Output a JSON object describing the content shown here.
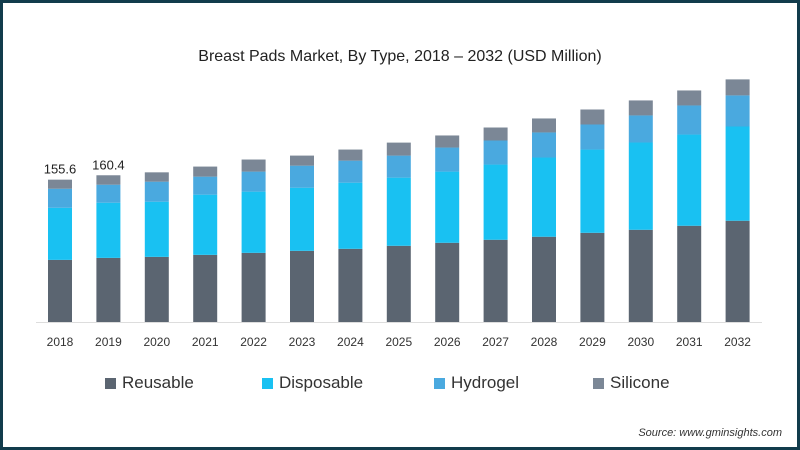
{
  "chart_data": {
    "type": "bar",
    "stacked": true,
    "title": "Breast Pads Market, By Type, 2018 – 2032 (USD Million)",
    "xlabel": "",
    "ylabel": "",
    "ylim": [
      0,
      270
    ],
    "grid": false,
    "legend_position": "bottom",
    "categories": [
      "2018",
      "2019",
      "2020",
      "2021",
      "2022",
      "2023",
      "2024",
      "2025",
      "2026",
      "2027",
      "2028",
      "2029",
      "2030",
      "2031",
      "2032"
    ],
    "series": [
      {
        "name": "Reusable",
        "color": "#5b6571",
        "values": [
          67.9,
          70.1,
          71.2,
          73.4,
          75.6,
          77.8,
          80.0,
          83.3,
          86.6,
          89.9,
          93.2,
          97.5,
          100.8,
          105.2,
          110.7
        ]
      },
      {
        "name": "Disposable",
        "color": "#19c1f2",
        "values": [
          57.0,
          60.3,
          60.3,
          65.8,
          66.9,
          69.0,
          72.3,
          74.5,
          77.8,
          82.2,
          86.6,
          91.0,
          95.4,
          99.7,
          103.0
        ]
      },
      {
        "name": "Hydrogel",
        "color": "#4aa9df",
        "values": [
          20.8,
          19.7,
          21.9,
          19.7,
          21.9,
          24.1,
          24.1,
          24.1,
          26.3,
          26.3,
          27.4,
          27.4,
          29.6,
          31.8,
          34.0
        ]
      },
      {
        "name": "Silicone",
        "color": "#7b8796",
        "values": [
          9.9,
          10.3,
          10.2,
          11.0,
          13.2,
          11.0,
          12.1,
          14.2,
          13.2,
          14.2,
          15.3,
          16.4,
          16.4,
          16.4,
          17.5
        ]
      }
    ],
    "data_labels": [
      {
        "category": "2018",
        "text": "155.6"
      },
      {
        "category": "2019",
        "text": "160.4"
      }
    ],
    "source": "Source: www.gminsights.com"
  }
}
